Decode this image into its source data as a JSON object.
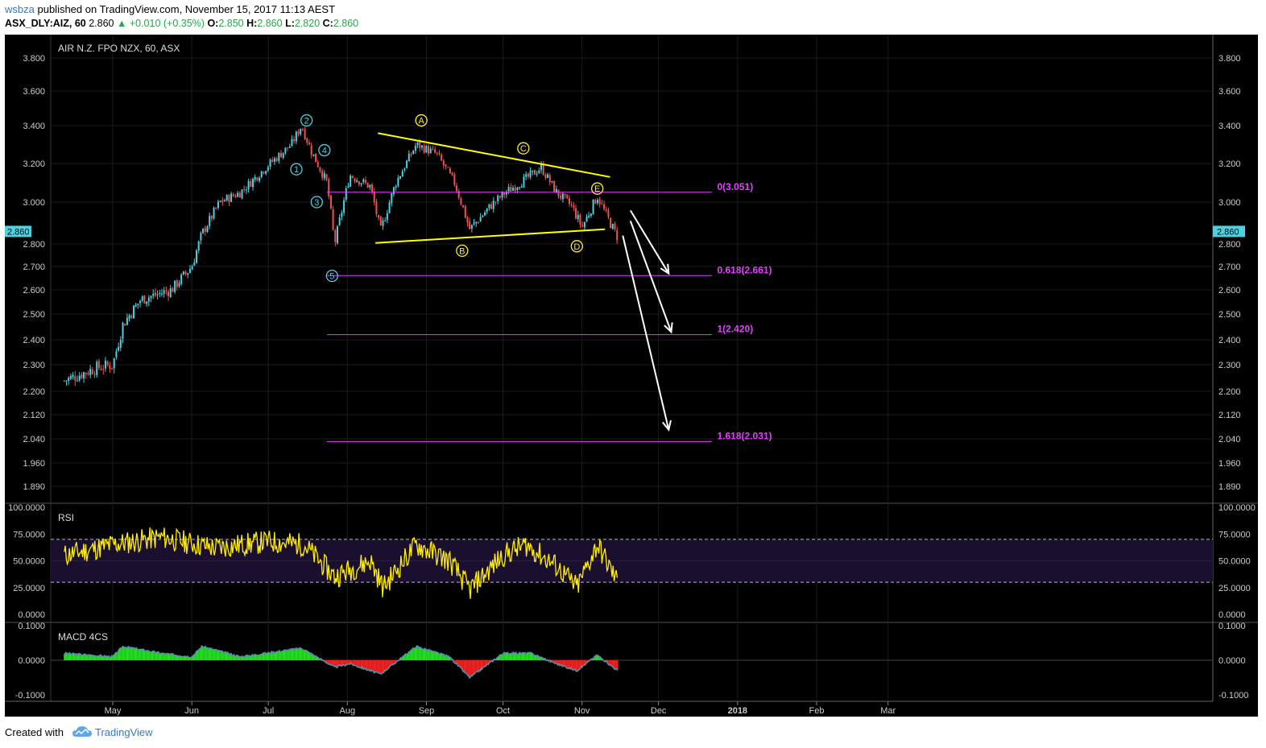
{
  "header": {
    "user": "wsbza",
    "published": "published on TradingView.com, November 15, 2017 11:13 AEST",
    "symbol": "ASX_DLY:AIZ, 60",
    "price": "2.860",
    "change": "▲ +0.010 (+0.35%)",
    "o_label": "O:",
    "o": "2.850",
    "h_label": "H:",
    "h": "2.860",
    "l_label": "L:",
    "l": "2.820",
    "c_label": "C:",
    "c": "2.860"
  },
  "footer": {
    "created": "Created with",
    "brand": "TradingView",
    "logo_icon": "tradingview-cloud-icon"
  },
  "chart_data": [
    {
      "type": "candlestick",
      "title": "AIR N.Z. FPO NZX, 60, ASX",
      "price_ticks": [
        "3.800",
        "3.600",
        "3.400",
        "3.200",
        "3.000",
        "2.800",
        "2.700",
        "2.600",
        "2.500",
        "2.400",
        "2.300",
        "2.200",
        "2.120",
        "2.040",
        "1.960",
        "1.890"
      ],
      "current_price_label": "2.860",
      "x_ticks": [
        "May",
        "Jun",
        "Jul",
        "Aug",
        "Sep",
        "Oct",
        "Nov",
        "Dec",
        "2018",
        "Feb",
        "Mar"
      ],
      "approx_closes": [
        {
          "date": "2017-04-12",
          "value": 2.24
        },
        {
          "date": "2017-04-25",
          "value": 2.29
        },
        {
          "date": "2017-05-01",
          "value": 2.3
        },
        {
          "date": "2017-05-05",
          "value": 2.46
        },
        {
          "date": "2017-05-12",
          "value": 2.56
        },
        {
          "date": "2017-05-24",
          "value": 2.6
        },
        {
          "date": "2017-06-01",
          "value": 2.7
        },
        {
          "date": "2017-06-05",
          "value": 2.85
        },
        {
          "date": "2017-06-12",
          "value": 3.0
        },
        {
          "date": "2017-06-20",
          "value": 3.05
        },
        {
          "date": "2017-06-30",
          "value": 3.18
        },
        {
          "date": "2017-07-10",
          "value": 3.3
        },
        {
          "date": "2017-07-14",
          "value": 3.4
        },
        {
          "date": "2017-07-18",
          "value": 3.26
        },
        {
          "date": "2017-07-24",
          "value": 3.1
        },
        {
          "date": "2017-07-27",
          "value": 2.8
        },
        {
          "date": "2017-08-02",
          "value": 3.14
        },
        {
          "date": "2017-08-10",
          "value": 3.08
        },
        {
          "date": "2017-08-14",
          "value": 2.86
        },
        {
          "date": "2017-08-20",
          "value": 3.1
        },
        {
          "date": "2017-08-28",
          "value": 3.3
        },
        {
          "date": "2017-09-05",
          "value": 3.25
        },
        {
          "date": "2017-09-12",
          "value": 3.1
        },
        {
          "date": "2017-09-18",
          "value": 2.87
        },
        {
          "date": "2017-09-26",
          "value": 2.98
        },
        {
          "date": "2017-10-02",
          "value": 3.05
        },
        {
          "date": "2017-10-10",
          "value": 3.12
        },
        {
          "date": "2017-10-16",
          "value": 3.18
        },
        {
          "date": "2017-10-22",
          "value": 3.05
        },
        {
          "date": "2017-10-28",
          "value": 2.98
        },
        {
          "date": "2017-11-01",
          "value": 2.88
        },
        {
          "date": "2017-11-07",
          "value": 3.03
        },
        {
          "date": "2017-11-10",
          "value": 2.95
        },
        {
          "date": "2017-11-15",
          "value": 2.83
        }
      ],
      "wave_labels": [
        {
          "label": "1",
          "date": "2017-07-12",
          "value": 3.17
        },
        {
          "label": "2",
          "date": "2017-07-16",
          "value": 3.43
        },
        {
          "label": "3",
          "date": "2017-07-20",
          "value": 3.0
        },
        {
          "label": "4",
          "date": "2017-07-23",
          "value": 3.27
        },
        {
          "label": "5",
          "date": "2017-07-26",
          "value": 2.66
        },
        {
          "label": "A",
          "date": "2017-08-30",
          "value": 3.43
        },
        {
          "label": "B",
          "date": "2017-09-15",
          "value": 2.77
        },
        {
          "label": "C",
          "date": "2017-10-09",
          "value": 3.28
        },
        {
          "label": "D",
          "date": "2017-10-30",
          "value": 2.79
        },
        {
          "label": "E",
          "date": "2017-11-07",
          "value": 3.07
        }
      ],
      "trendlines": [
        {
          "from": {
            "date": "2017-08-13",
            "value": 3.36
          },
          "to": {
            "date": "2017-11-12",
            "value": 3.13
          },
          "color": "#ffff00"
        },
        {
          "from": {
            "date": "2017-08-12",
            "value": 2.805
          },
          "to": {
            "date": "2017-11-10",
            "value": 2.87
          },
          "color": "#ffff00"
        }
      ],
      "fib_levels": [
        {
          "label": "0(3.051)",
          "value": 3.051
        },
        {
          "label": "0.618(2.661)",
          "value": 2.661
        },
        {
          "label": "1(2.420)",
          "value": 2.42
        },
        {
          "label": "1.618(2.031)",
          "value": 2.031
        }
      ],
      "projection_arrows": [
        {
          "from": {
            "date": "2017-11-20",
            "value": 2.96
          },
          "to": {
            "date": "2017-12-05",
            "value": 2.67
          }
        },
        {
          "from": {
            "date": "2017-11-20",
            "value": 2.91
          },
          "to": {
            "date": "2017-12-06",
            "value": 2.43
          }
        },
        {
          "from": {
            "date": "2017-11-17",
            "value": 2.84
          },
          "to": {
            "date": "2017-12-05",
            "value": 2.07
          }
        }
      ]
    },
    {
      "type": "line",
      "title": "RSI",
      "y_ticks": [
        "100.0000",
        "75.0000",
        "50.0000",
        "25.0000",
        "0.0000"
      ],
      "ylim": [
        0,
        100
      ],
      "bands": [
        30,
        70
      ],
      "approx_values": [
        {
          "date": "2017-04-12",
          "value": 55
        },
        {
          "date": "2017-05-01",
          "value": 65
        },
        {
          "date": "2017-05-20",
          "value": 72
        },
        {
          "date": "2017-06-10",
          "value": 62
        },
        {
          "date": "2017-07-01",
          "value": 68
        },
        {
          "date": "2017-07-15",
          "value": 65
        },
        {
          "date": "2017-07-27",
          "value": 35
        },
        {
          "date": "2017-08-10",
          "value": 50
        },
        {
          "date": "2017-08-15",
          "value": 25
        },
        {
          "date": "2017-08-28",
          "value": 65
        },
        {
          "date": "2017-09-10",
          "value": 50
        },
        {
          "date": "2017-09-18",
          "value": 23
        },
        {
          "date": "2017-10-01",
          "value": 55
        },
        {
          "date": "2017-10-10",
          "value": 65
        },
        {
          "date": "2017-10-22",
          "value": 45
        },
        {
          "date": "2017-10-30",
          "value": 25
        },
        {
          "date": "2017-11-07",
          "value": 65
        },
        {
          "date": "2017-11-15",
          "value": 30
        }
      ]
    },
    {
      "type": "area",
      "title": "MACD 4CS",
      "y_ticks": [
        "0.1000",
        "0.0000",
        "-0.1000"
      ],
      "ylim": [
        -0.1,
        0.1
      ],
      "approx_values": [
        {
          "date": "2017-04-12",
          "value": 0.02
        },
        {
          "date": "2017-05-01",
          "value": 0.01
        },
        {
          "date": "2017-05-05",
          "value": 0.04
        },
        {
          "date": "2017-05-20",
          "value": 0.02
        },
        {
          "date": "2017-06-01",
          "value": 0.01
        },
        {
          "date": "2017-06-05",
          "value": 0.04
        },
        {
          "date": "2017-06-20",
          "value": 0.01
        },
        {
          "date": "2017-06-30",
          "value": 0.02
        },
        {
          "date": "2017-07-14",
          "value": 0.035
        },
        {
          "date": "2017-07-27",
          "value": -0.02
        },
        {
          "date": "2017-08-02",
          "value": -0.01
        },
        {
          "date": "2017-08-14",
          "value": -0.04
        },
        {
          "date": "2017-08-28",
          "value": 0.04
        },
        {
          "date": "2017-09-10",
          "value": 0.01
        },
        {
          "date": "2017-09-18",
          "value": -0.05
        },
        {
          "date": "2017-10-01",
          "value": 0.02
        },
        {
          "date": "2017-10-12",
          "value": 0.02
        },
        {
          "date": "2017-10-22",
          "value": -0.01
        },
        {
          "date": "2017-10-30",
          "value": -0.03
        },
        {
          "date": "2017-11-07",
          "value": 0.015
        },
        {
          "date": "2017-11-15",
          "value": -0.03
        }
      ]
    }
  ]
}
